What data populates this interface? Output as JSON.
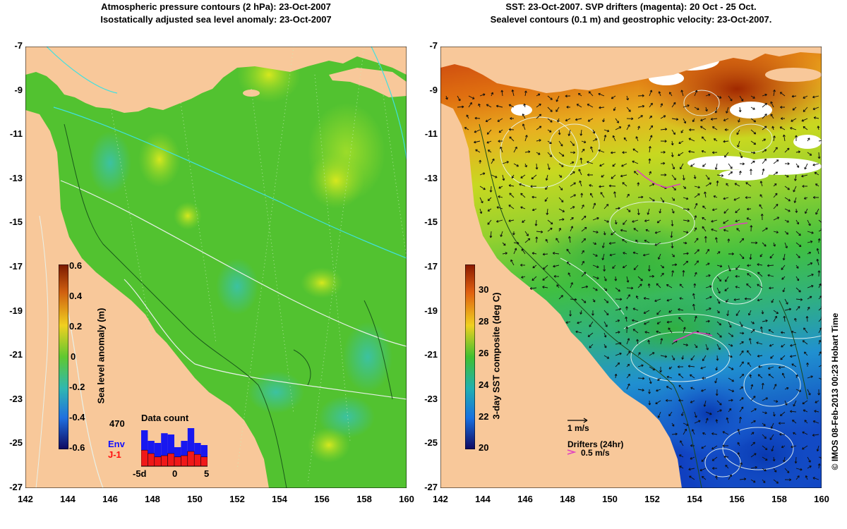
{
  "left_panel": {
    "title_line1": "Atmospheric pressure contours (2 hPa): 23-Oct-2007",
    "title_line2": "Isostatically adjusted sea level anomaly: 23-Oct-2007",
    "colorbar_label": "Sea level anomaly (m)",
    "colorbar_ticks": [
      "0.6",
      "0.4",
      "0.2",
      "0",
      "-0.2",
      "-0.4",
      "-0.6"
    ],
    "data_count": {
      "title": "Data count",
      "max_label": "470",
      "env_label": "Env",
      "j1_label": "J-1",
      "axis_left": "-5d",
      "axis_mid": "0",
      "axis_right": "5",
      "env_values": [
        0.85,
        0.6,
        0.55,
        0.78,
        0.75,
        0.45,
        0.6,
        0.9,
        0.55,
        0.5
      ],
      "j1_values": [
        0.38,
        0.3,
        0.22,
        0.25,
        0.3,
        0.22,
        0.25,
        0.35,
        0.28,
        0.22
      ]
    }
  },
  "right_panel": {
    "title_line1": "SST: 23-Oct-2007. SVP drifters (magenta): 20 Oct - 25 Oct.",
    "title_line2": "Sealevel contours (0.1 m) and geostrophic velocity: 23-Oct-2007.",
    "colorbar_label": "3-day SST composite (deg C)",
    "colorbar_ticks": [
      "30",
      "28",
      "26",
      "24",
      "22",
      "20"
    ],
    "velocity_scale_label": "1 m/s",
    "drifters_label": "Drifters (24hr)",
    "drifter_speed_label": "0.5 m/s"
  },
  "lat_ticks": [
    "-7",
    "-9",
    "-11",
    "-13",
    "-15",
    "-17",
    "-19",
    "-21",
    "-23",
    "-25",
    "-27"
  ],
  "lon_ticks": [
    "142",
    "144",
    "146",
    "148",
    "150",
    "152",
    "154",
    "156",
    "158",
    "160"
  ],
  "credit": "© IMOS 08-Feb-2013 00:23 Hobart Time",
  "colors": {
    "land": "#f8c89a",
    "sla_ocean": "#52c230",
    "drifter": "#e040c0"
  }
}
